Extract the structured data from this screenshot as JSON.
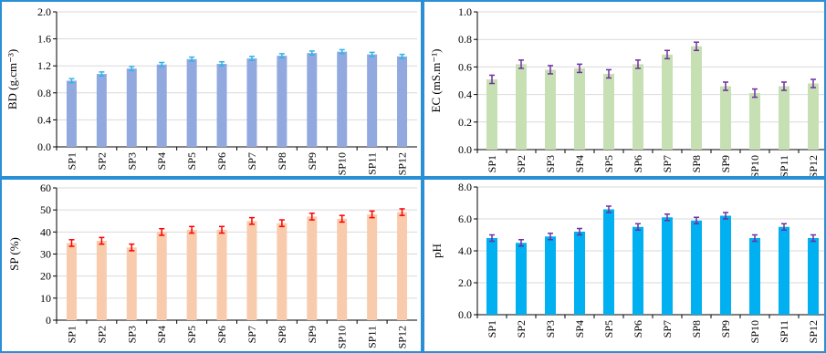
{
  "chart_data": [
    {
      "type": "bar",
      "ylabel": "BD (g.cm⁻³)",
      "categories": [
        "SP1",
        "SP2",
        "SP3",
        "SP4",
        "SP5",
        "SP6",
        "SP7",
        "SP8",
        "SP9",
        "SP10",
        "SP11",
        "SP12"
      ],
      "values": [
        0.98,
        1.08,
        1.16,
        1.22,
        1.3,
        1.23,
        1.31,
        1.35,
        1.39,
        1.41,
        1.37,
        1.34
      ],
      "errors": [
        0.03,
        0.03,
        0.03,
        0.03,
        0.03,
        0.03,
        0.03,
        0.03,
        0.03,
        0.03,
        0.03,
        0.03
      ],
      "ylim": [
        0,
        2.0
      ],
      "yticks": [
        "0.0",
        "0.4",
        "0.8",
        "1.2",
        "1.6",
        "2.0"
      ],
      "bar_color": "#92a9e0",
      "error_color": "#2fb4e8",
      "grid": true
    },
    {
      "type": "bar",
      "ylabel": "EC (mS.m⁻¹)",
      "categories": [
        "SP1",
        "SP2",
        "SP3",
        "SP4",
        "SP5",
        "SP6",
        "SP7",
        "SP8",
        "SP9",
        "SP10",
        "SP11",
        "SP12"
      ],
      "values": [
        0.51,
        0.62,
        0.58,
        0.59,
        0.55,
        0.62,
        0.69,
        0.75,
        0.46,
        0.41,
        0.46,
        0.48
      ],
      "errors": [
        0.03,
        0.03,
        0.03,
        0.03,
        0.03,
        0.03,
        0.03,
        0.03,
        0.03,
        0.03,
        0.03,
        0.03
      ],
      "ylim": [
        0,
        1.0
      ],
      "yticks": [
        "0.0",
        "0.2",
        "0.4",
        "0.6",
        "0.8",
        "1.0"
      ],
      "bar_color": "#c6e0b4",
      "error_color": "#7030a0",
      "grid": true
    },
    {
      "type": "bar",
      "ylabel": "SP (%)",
      "categories": [
        "SP1",
        "SP2",
        "SP3",
        "SP4",
        "SP5",
        "SP6",
        "SP7",
        "SP8",
        "SP9",
        "SP10",
        "SP11",
        "SP12"
      ],
      "values": [
        35,
        36,
        33,
        40,
        41,
        41,
        45,
        44,
        47,
        46,
        48,
        49
      ],
      "errors": [
        1.5,
        1.5,
        1.5,
        1.5,
        1.5,
        1.5,
        1.5,
        1.5,
        1.5,
        1.5,
        1.5,
        1.5
      ],
      "ylim": [
        0,
        60
      ],
      "yticks": [
        "0",
        "10",
        "20",
        "30",
        "40",
        "50",
        "60"
      ],
      "bar_color": "#f8cbad",
      "error_color": "#ff0000",
      "grid": true
    },
    {
      "type": "bar",
      "ylabel": "pH",
      "categories": [
        "SP1",
        "SP2",
        "SP3",
        "SP4",
        "SP5",
        "SP6",
        "SP7",
        "SP8",
        "SP9",
        "SP10",
        "SP11",
        "SP12"
      ],
      "values": [
        4.8,
        4.5,
        4.9,
        5.2,
        6.6,
        5.5,
        6.1,
        5.9,
        6.2,
        4.8,
        5.5,
        4.8
      ],
      "errors": [
        0.2,
        0.2,
        0.2,
        0.2,
        0.2,
        0.2,
        0.2,
        0.2,
        0.2,
        0.2,
        0.2,
        0.2
      ],
      "ylim": [
        0,
        8.0
      ],
      "yticks": [
        "0.0",
        "2.0",
        "4.0",
        "6.0",
        "8.0"
      ],
      "bar_color": "#00b0f0",
      "error_color": "#7030a0",
      "grid": true
    }
  ]
}
